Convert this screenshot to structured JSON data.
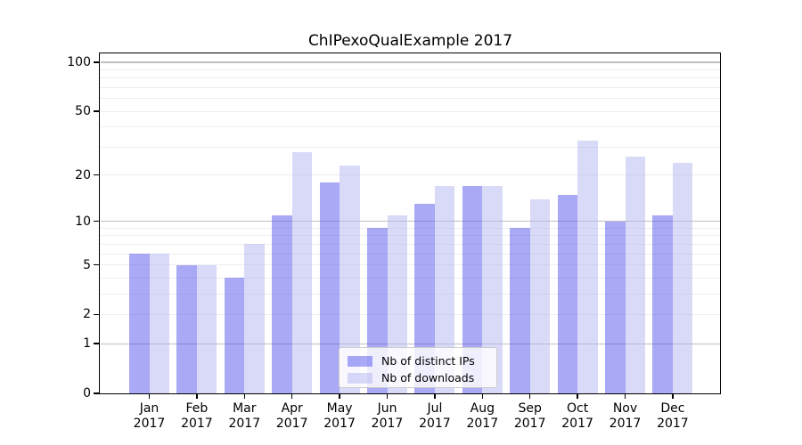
{
  "title": "ChIPexoQualExample 2017",
  "colors": {
    "ips_bar": "rgba(83,83,237,0.5)",
    "downloads_bar": "rgba(180,180,242,0.5)",
    "grid_major": "#bfbfbf",
    "grid_minor": "#ededed",
    "axis": "#000000"
  },
  "legend": {
    "items": [
      {
        "label": "Nb of distinct IPs",
        "series": "ips"
      },
      {
        "label": "Nb of downloads",
        "series": "downloads"
      }
    ]
  },
  "chart_data": {
    "type": "bar",
    "title": "ChIPexoQualExample 2017",
    "year": "2017",
    "months": [
      "Jan",
      "Feb",
      "Mar",
      "Apr",
      "May",
      "Jun",
      "Jul",
      "Aug",
      "Sep",
      "Oct",
      "Nov",
      "Dec"
    ],
    "categories": [
      "Jan 2017",
      "Feb 2017",
      "Mar 2017",
      "Apr 2017",
      "May 2017",
      "Jun 2017",
      "Jul 2017",
      "Aug 2017",
      "Sep 2017",
      "Oct 2017",
      "Nov 2017",
      "Dec 2017"
    ],
    "series": [
      {
        "name": "Nb of distinct IPs",
        "values": [
          6,
          5,
          4,
          11,
          18,
          9,
          13,
          17,
          9,
          15,
          10,
          11
        ]
      },
      {
        "name": "Nb of downloads",
        "values": [
          6,
          5,
          7,
          28,
          23,
          11,
          17,
          17,
          14,
          33,
          26,
          24
        ]
      }
    ],
    "xlabel": "",
    "ylabel": "",
    "yscale": "log1p",
    "ylim": [
      0,
      113
    ],
    "y_ticks": [
      0,
      1,
      2,
      5,
      10,
      20,
      50,
      100
    ],
    "y_major_gridlines": [
      1,
      10,
      100
    ],
    "y_minor_gridlines": [
      2,
      3,
      4,
      5,
      6,
      7,
      8,
      9,
      20,
      30,
      40,
      50,
      60,
      70,
      80,
      90
    ],
    "grid": "on",
    "legend_position": "lower-center"
  }
}
